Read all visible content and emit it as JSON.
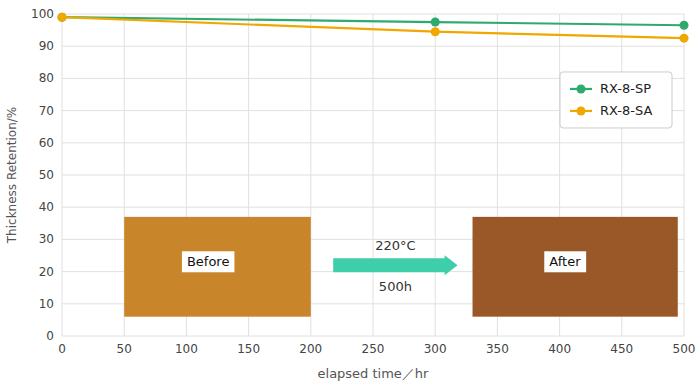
{
  "chart_data": {
    "type": "line",
    "x_label": "elapsed time／hr",
    "y_label": "Thickness Retention/%",
    "x": [
      0,
      300,
      500
    ],
    "series": [
      {
        "name": "RX-8-SP",
        "color": "#2eaa6e",
        "marker": "circle",
        "values": [
          99,
          97.5,
          96.5
        ]
      },
      {
        "name": "RX-8-SA",
        "color": "#f0a800",
        "marker": "circle",
        "values": [
          99,
          94.5,
          92.5
        ]
      }
    ],
    "xlim": [
      0,
      500
    ],
    "ylim": [
      0,
      100
    ],
    "xticks": [
      0,
      50,
      100,
      150,
      200,
      250,
      300,
      350,
      400,
      450,
      500
    ],
    "yticks": [
      0,
      10,
      20,
      30,
      40,
      50,
      60,
      70,
      80,
      90,
      100
    ],
    "grid": true,
    "legend": "upper right",
    "annotations": [
      "Before",
      "After",
      "220°C",
      "500h"
    ]
  }
}
